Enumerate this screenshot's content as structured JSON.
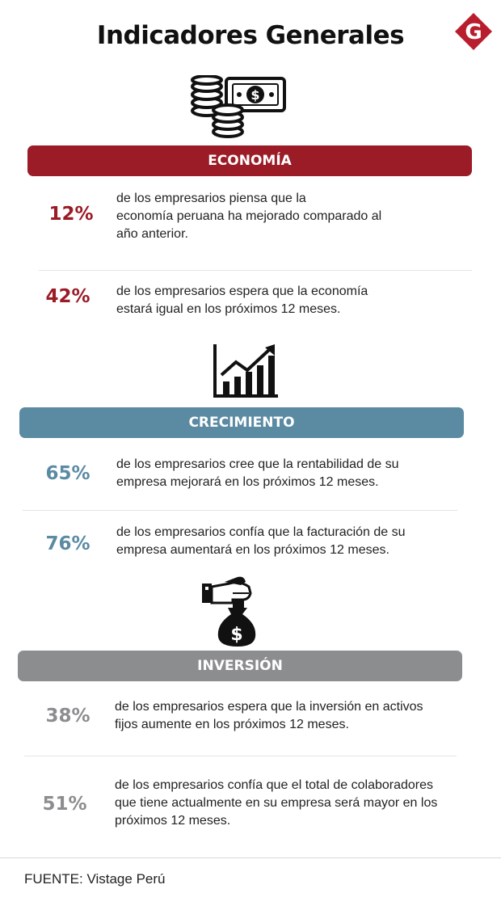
{
  "header": {
    "title": "Indicadores Generales",
    "logo_letter": "G"
  },
  "colors": {
    "economia": "#9b1b26",
    "crecimiento": "#5b8aa3",
    "inversion": "#8c8d8f"
  },
  "sections": [
    {
      "banner": "ECONOMÍA",
      "icon": "money-coins-icon",
      "stats": [
        {
          "value": "12%",
          "lines": [
            "de los empresarios piensa que la",
            "economía peruana ha mejorado comparado al",
            "año anterior."
          ]
        },
        {
          "value": "42%",
          "lines": [
            "de los empresarios espera que la economía",
            "estará igual en los próximos  12 meses."
          ]
        }
      ]
    },
    {
      "banner": "CRECIMIENTO",
      "icon": "growth-chart-icon",
      "stats": [
        {
          "value": "65%",
          "lines": [
            "de los empresarios cree que la rentabilidad de su",
            "empresa mejorará en los próximos 12 meses."
          ]
        },
        {
          "value": "76%",
          "lines": [
            "de los empresarios confía que  la facturación de su",
            "empresa aumentará en los próximos 12 meses."
          ]
        }
      ]
    },
    {
      "banner": "INVERSIÓN",
      "icon": "money-bag-hand-icon",
      "stats": [
        {
          "value": "38%",
          "lines": [
            "de los empresarios espera que  la inversión en activos",
            "fijos aumente en los próximos 12 meses."
          ]
        },
        {
          "value": "51%",
          "lines": [
            "de los empresarios confía que el total de colaboradores",
            "que tiene actualmente en su empresa será mayor en los",
            "próximos 12 meses."
          ]
        }
      ]
    }
  ],
  "chart_data": {
    "type": "table",
    "title": "Indicadores Generales",
    "categories": [
      "ECONOMÍA",
      "ECONOMÍA",
      "CRECIMIENTO",
      "CRECIMIENTO",
      "INVERSIÓN",
      "INVERSIÓN"
    ],
    "values": [
      12,
      42,
      65,
      76,
      38,
      51
    ],
    "unit": "%"
  },
  "footer": {
    "source": "FUENTE: Vistage Perú"
  }
}
